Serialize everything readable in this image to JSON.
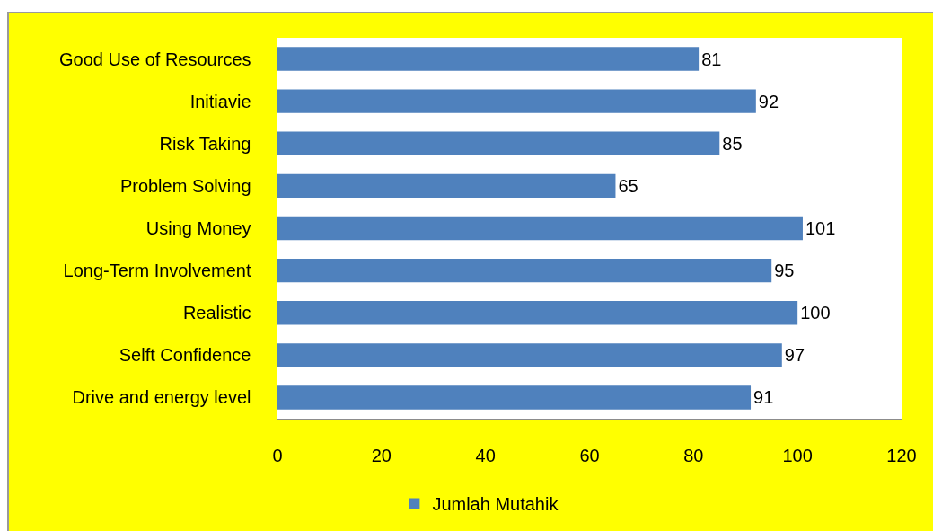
{
  "chart_data": {
    "type": "bar",
    "orientation": "horizontal",
    "categories": [
      "Good Use of Resources",
      "Initiavie",
      "Risk Taking",
      "Problem Solving",
      "Using Money",
      "Long-Term Involvement",
      "Realistic",
      "Selft Confidence",
      "Drive and energy level"
    ],
    "series": [
      {
        "name": "Jumlah Mutahik",
        "color": "#4f81bd",
        "values": [
          81,
          92,
          85,
          65,
          101,
          95,
          100,
          97,
          91
        ]
      }
    ],
    "xlim": [
      0,
      120
    ],
    "xticks": [
      0,
      20,
      40,
      60,
      80,
      100,
      120
    ],
    "data_labels": true,
    "legend": "bottom"
  }
}
